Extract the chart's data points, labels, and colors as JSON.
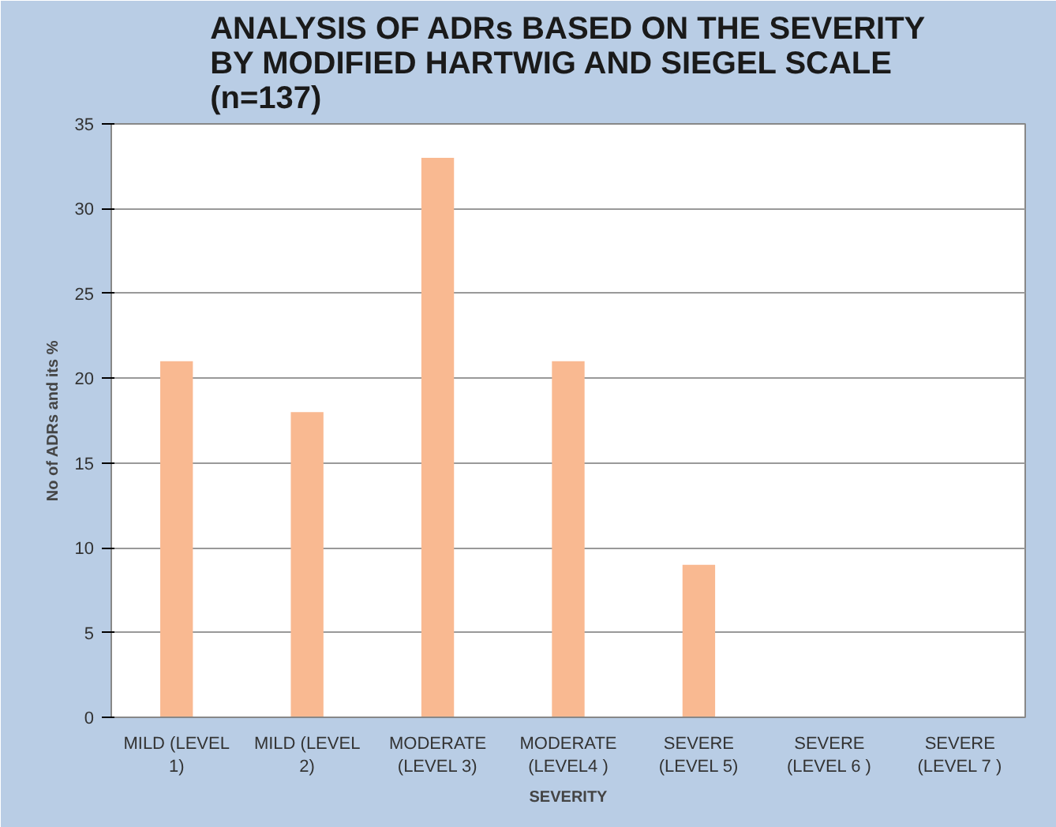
{
  "chart_data": {
    "type": "bar",
    "title": "ANALYSIS OF ADRs BASED ON THE SEVERITY\nBY MODIFIED HARTWIG AND SIEGEL SCALE\n(n=137)",
    "xlabel": "SEVERITY",
    "ylabel": "No of ADRs and its %",
    "categories": [
      "MILD (LEVEL\n1)",
      "MILD (LEVEL\n2)",
      "MODERATE\n(LEVEL 3)",
      "MODERATE\n(LEVEL4 )",
      "SEVERE\n(LEVEL 5)",
      "SEVERE\n(LEVEL 6 )",
      "SEVERE\n(LEVEL 7 )"
    ],
    "values": [
      21,
      18,
      33,
      21,
      9,
      0,
      0
    ],
    "color": "#f9b991",
    "ylim": [
      0,
      35
    ],
    "yticks": [
      0,
      5,
      10,
      15,
      20,
      25,
      30,
      35
    ],
    "grid": "y"
  }
}
